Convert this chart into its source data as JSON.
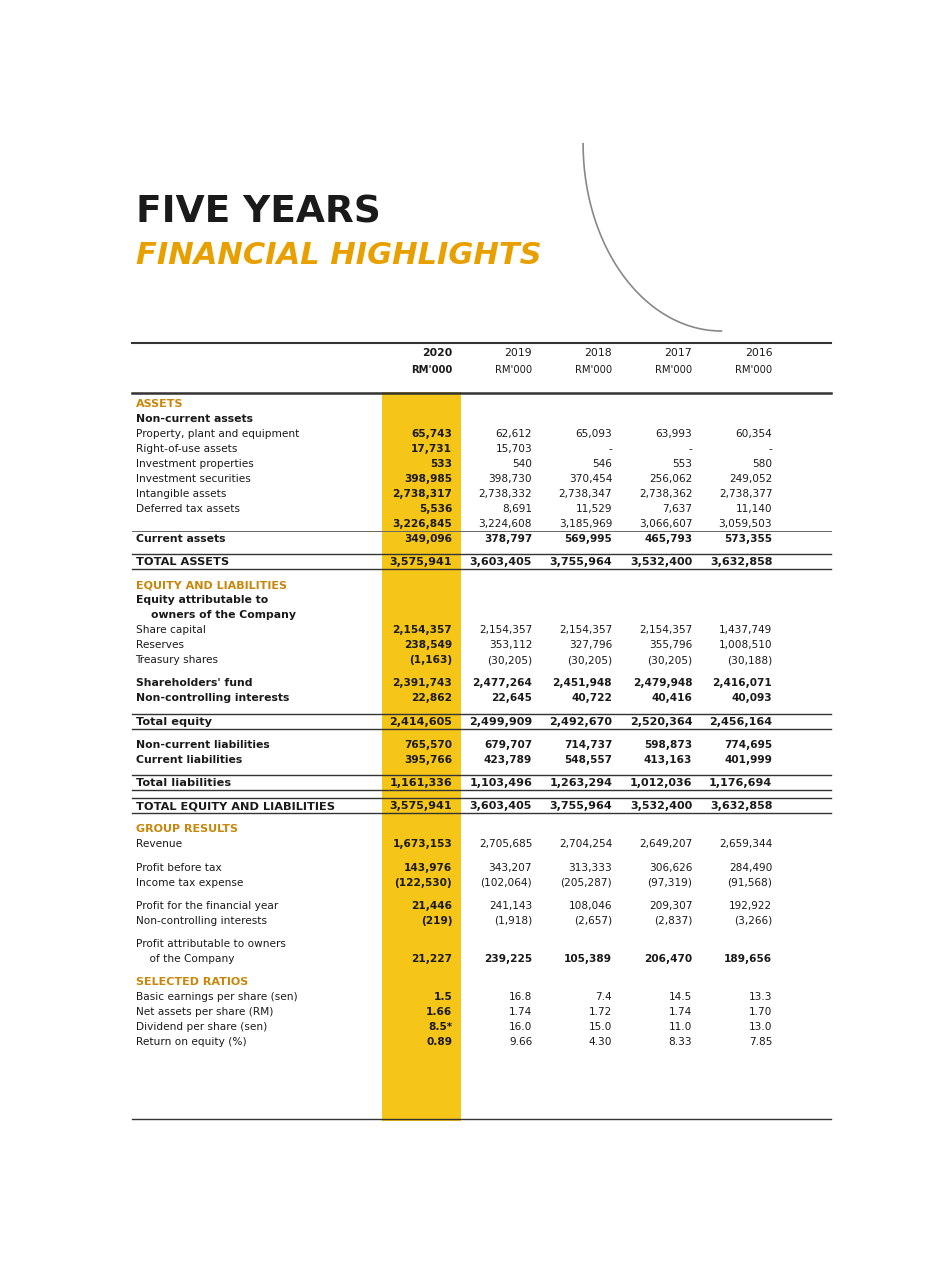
{
  "title_line1": "FIVE YEARS",
  "title_line2": "FINANCIAL HIGHLIGHTS",
  "title1_color": "#1a1a1a",
  "title2_color": "#E8A000",
  "highlight_color": "#F5C518",
  "section_color": "#C8860A",
  "col_headers_year": [
    "2020",
    "2019",
    "2018",
    "2017",
    "2016"
  ],
  "col_headers_rm": [
    "RM'000",
    "RM'000",
    "RM'000",
    "RM'000",
    "RM'000"
  ],
  "rows": [
    {
      "label": "ASSETS",
      "values": [
        "",
        "",
        "",
        "",
        ""
      ],
      "style": "section"
    },
    {
      "label": "Non-current assets",
      "values": [
        "",
        "",
        "",
        "",
        ""
      ],
      "style": "subsection"
    },
    {
      "label": "Property, plant and equipment",
      "values": [
        "65,743",
        "62,612",
        "65,093",
        "63,993",
        "60,354"
      ],
      "style": "normal"
    },
    {
      "label": "Right-of-use assets",
      "values": [
        "17,731",
        "15,703",
        "-",
        "-",
        "-"
      ],
      "style": "normal"
    },
    {
      "label": "Investment properties",
      "values": [
        "533",
        "540",
        "546",
        "553",
        "580"
      ],
      "style": "normal"
    },
    {
      "label": "Investment securities",
      "values": [
        "398,985",
        "398,730",
        "370,454",
        "256,062",
        "249,052"
      ],
      "style": "normal"
    },
    {
      "label": "Intangible assets",
      "values": [
        "2,738,317",
        "2,738,332",
        "2,738,347",
        "2,738,362",
        "2,738,377"
      ],
      "style": "normal"
    },
    {
      "label": "Deferred tax assets",
      "values": [
        "5,536",
        "8,691",
        "11,529",
        "7,637",
        "11,140"
      ],
      "style": "normal"
    },
    {
      "label": "",
      "values": [
        "3,226,845",
        "3,224,608",
        "3,185,969",
        "3,066,607",
        "3,059,503"
      ],
      "style": "subtotal"
    },
    {
      "label": "Current assets",
      "values": [
        "349,096",
        "378,797",
        "569,995",
        "465,793",
        "573,355"
      ],
      "style": "bold"
    },
    {
      "label": "",
      "values": [
        "",
        "",
        "",
        "",
        ""
      ],
      "style": "spacer"
    },
    {
      "label": "TOTAL ASSETS",
      "values": [
        "3,575,941",
        "3,603,405",
        "3,755,964",
        "3,532,400",
        "3,632,858"
      ],
      "style": "total"
    },
    {
      "label": "",
      "values": [
        "",
        "",
        "",
        "",
        ""
      ],
      "style": "spacer"
    },
    {
      "label": "EQUITY AND LIABILITIES",
      "values": [
        "",
        "",
        "",
        "",
        ""
      ],
      "style": "section"
    },
    {
      "label": "Equity attributable to",
      "values": [
        "",
        "",
        "",
        "",
        ""
      ],
      "style": "subsection"
    },
    {
      "label": "owners of the Company",
      "values": [
        "",
        "",
        "",
        "",
        ""
      ],
      "style": "subindent"
    },
    {
      "label": "Share capital",
      "values": [
        "2,154,357",
        "2,154,357",
        "2,154,357",
        "2,154,357",
        "1,437,749"
      ],
      "style": "normal"
    },
    {
      "label": "Reserves",
      "values": [
        "238,549",
        "353,112",
        "327,796",
        "355,796",
        "1,008,510"
      ],
      "style": "normal"
    },
    {
      "label": "Treasury shares",
      "values": [
        "(1,163)",
        "(30,205)",
        "(30,205)",
        "(30,205)",
        "(30,188)"
      ],
      "style": "normal"
    },
    {
      "label": "",
      "values": [
        "",
        "",
        "",
        "",
        ""
      ],
      "style": "spacer"
    },
    {
      "label": "Shareholders' fund",
      "values": [
        "2,391,743",
        "2,477,264",
        "2,451,948",
        "2,479,948",
        "2,416,071"
      ],
      "style": "bold"
    },
    {
      "label": "Non-controlling interests",
      "values": [
        "22,862",
        "22,645",
        "40,722",
        "40,416",
        "40,093"
      ],
      "style": "bold"
    },
    {
      "label": "",
      "values": [
        "",
        "",
        "",
        "",
        ""
      ],
      "style": "spacer"
    },
    {
      "label": "Total equity",
      "values": [
        "2,414,605",
        "2,499,909",
        "2,492,670",
        "2,520,364",
        "2,456,164"
      ],
      "style": "total"
    },
    {
      "label": "",
      "values": [
        "",
        "",
        "",
        "",
        ""
      ],
      "style": "spacer"
    },
    {
      "label": "Non-current liabilities",
      "values": [
        "765,570",
        "679,707",
        "714,737",
        "598,873",
        "774,695"
      ],
      "style": "bold"
    },
    {
      "label": "Current liabilities",
      "values": [
        "395,766",
        "423,789",
        "548,557",
        "413,163",
        "401,999"
      ],
      "style": "bold"
    },
    {
      "label": "",
      "values": [
        "",
        "",
        "",
        "",
        ""
      ],
      "style": "spacer"
    },
    {
      "label": "Total liabilities",
      "values": [
        "1,161,336",
        "1,103,496",
        "1,263,294",
        "1,012,036",
        "1,176,694"
      ],
      "style": "total"
    },
    {
      "label": "",
      "values": [
        "",
        "",
        "",
        "",
        ""
      ],
      "style": "spacer"
    },
    {
      "label": "TOTAL EQUITY AND LIABILITIES",
      "values": [
        "3,575,941",
        "3,603,405",
        "3,755,964",
        "3,532,400",
        "3,632,858"
      ],
      "style": "total"
    },
    {
      "label": "",
      "values": [
        "",
        "",
        "",
        "",
        ""
      ],
      "style": "spacer"
    },
    {
      "label": "GROUP RESULTS",
      "values": [
        "",
        "",
        "",
        "",
        ""
      ],
      "style": "section"
    },
    {
      "label": "Revenue",
      "values": [
        "1,673,153",
        "2,705,685",
        "2,704,254",
        "2,649,207",
        "2,659,344"
      ],
      "style": "normal"
    },
    {
      "label": "",
      "values": [
        "",
        "",
        "",
        "",
        ""
      ],
      "style": "spacer"
    },
    {
      "label": "Profit before tax",
      "values": [
        "143,976",
        "343,207",
        "313,333",
        "306,626",
        "284,490"
      ],
      "style": "normal"
    },
    {
      "label": "Income tax expense",
      "values": [
        "(122,530)",
        "(102,064)",
        "(205,287)",
        "(97,319)",
        "(91,568)"
      ],
      "style": "normal"
    },
    {
      "label": "",
      "values": [
        "",
        "",
        "",
        "",
        ""
      ],
      "style": "spacer"
    },
    {
      "label": "Profit for the financial year",
      "values": [
        "21,446",
        "241,143",
        "108,046",
        "209,307",
        "192,922"
      ],
      "style": "normal"
    },
    {
      "label": "Non-controlling interests",
      "values": [
        "(219)",
        "(1,918)",
        "(2,657)",
        "(2,837)",
        "(3,266)"
      ],
      "style": "normal"
    },
    {
      "label": "",
      "values": [
        "",
        "",
        "",
        "",
        ""
      ],
      "style": "spacer"
    },
    {
      "label": "Profit attributable to owners",
      "values": [
        "",
        "",
        "",
        "",
        ""
      ],
      "style": "normal_label"
    },
    {
      "label": "of the Company",
      "values": [
        "21,227",
        "239,225",
        "105,389",
        "206,470",
        "189,656"
      ],
      "style": "bold_underline"
    },
    {
      "label": "",
      "values": [
        "",
        "",
        "",
        "",
        ""
      ],
      "style": "spacer"
    },
    {
      "label": "SELECTED RATIOS",
      "values": [
        "",
        "",
        "",
        "",
        ""
      ],
      "style": "section"
    },
    {
      "label": "Basic earnings per share (sen)",
      "values": [
        "1.5",
        "16.8",
        "7.4",
        "14.5",
        "13.3"
      ],
      "style": "normal"
    },
    {
      "label": "Net assets per share (RM)",
      "values": [
        "1.66",
        "1.74",
        "1.72",
        "1.74",
        "1.70"
      ],
      "style": "normal"
    },
    {
      "label": "Dividend per share (sen)",
      "values": [
        "8.5*",
        "16.0",
        "15.0",
        "11.0",
        "13.0"
      ],
      "style": "normal"
    },
    {
      "label": "Return on equity (%)",
      "values": [
        "0.89",
        "9.66",
        "4.30",
        "8.33",
        "7.85"
      ],
      "style": "normal"
    }
  ]
}
